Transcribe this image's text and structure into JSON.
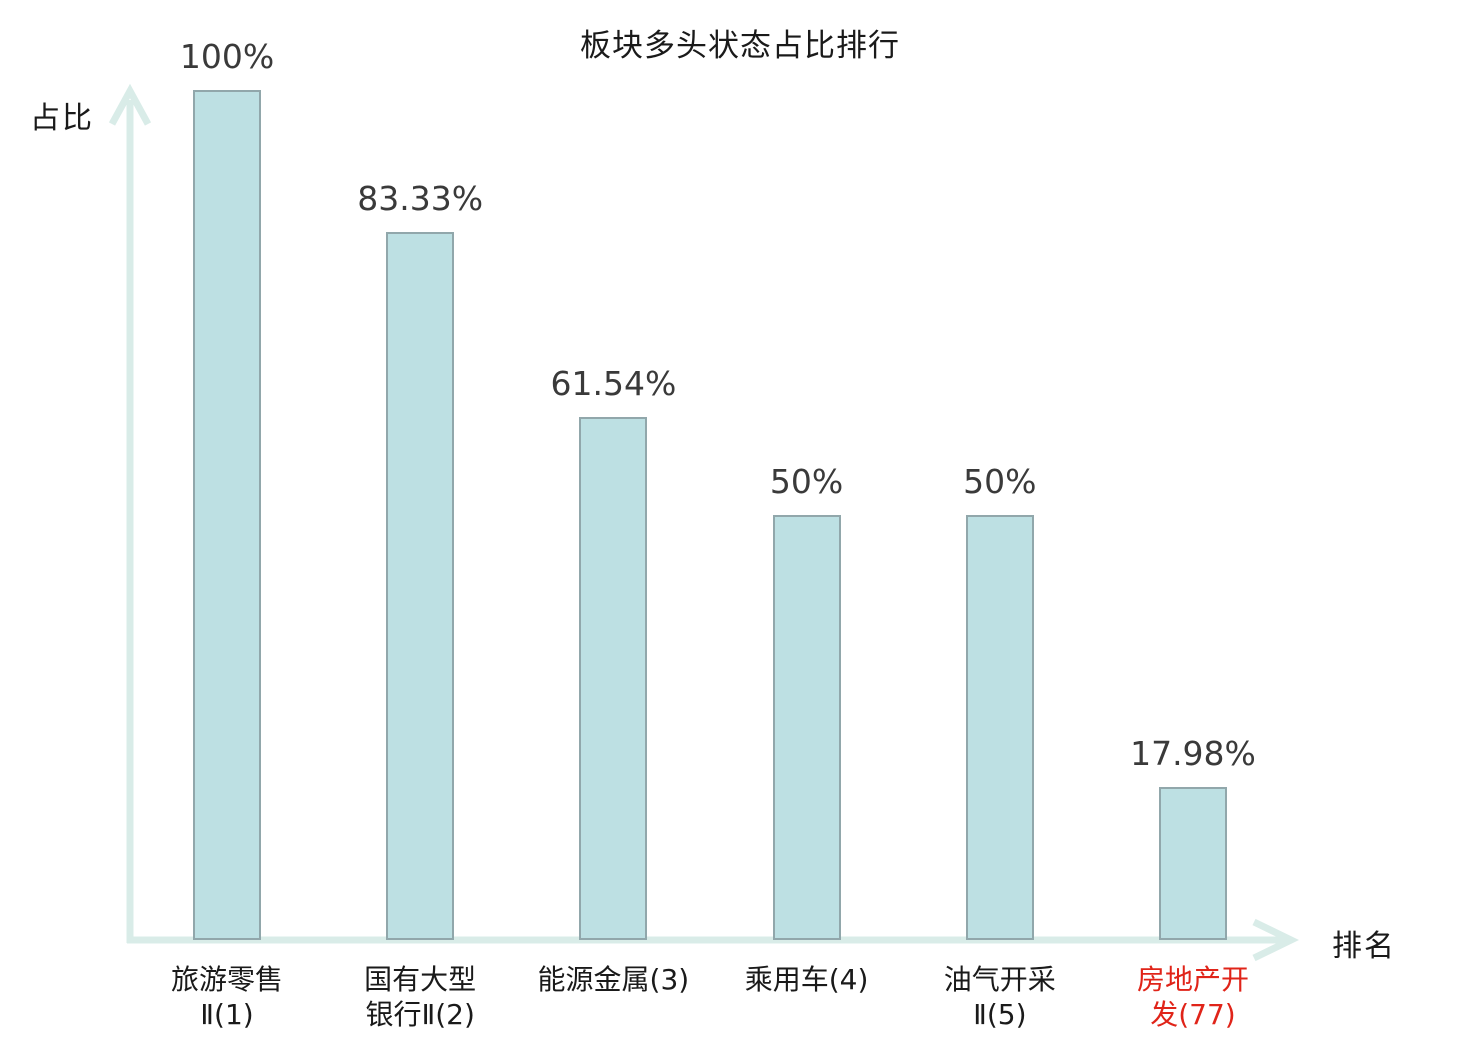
{
  "chart": {
    "title": "板块多头状态占比排行",
    "y_axis_label": "占比",
    "x_axis_label": "排名"
  },
  "chart_data": {
    "type": "bar",
    "title": "板块多头状态占比排行",
    "xlabel": "排名",
    "ylabel": "占比",
    "ylim": [
      0,
      100
    ],
    "grid": false,
    "legend": false,
    "categories": [
      "旅游零售Ⅱ(1)",
      "国有大型银行Ⅱ(2)",
      "能源金属(3)",
      "乘用车(4)",
      "油气开采Ⅱ(5)",
      "房地产开发(77)"
    ],
    "values": [
      100,
      83.33,
      61.54,
      50,
      50,
      17.98
    ],
    "bar_value_labels": [
      "100%",
      "83.33%",
      "61.54%",
      "50%",
      "50%",
      "17.98%"
    ],
    "category_label_lines": [
      [
        "旅游零售",
        "Ⅱ(1)"
      ],
      [
        "国有大型",
        "银行Ⅱ(2)"
      ],
      [
        "能源金属(3)"
      ],
      [
        "乘用车(4)"
      ],
      [
        "油气开采",
        "Ⅱ(5)"
      ],
      [
        "房地产开",
        "发(77)"
      ]
    ],
    "highlighted_category_index": 5,
    "colors": {
      "bar_fill": "#bde0e3",
      "bar_border": "#91a7ab",
      "axis": "#d9ece8",
      "value_label": "#3a3a3a",
      "category_label": "#1a1a1a",
      "highlight": "#e02419"
    }
  }
}
